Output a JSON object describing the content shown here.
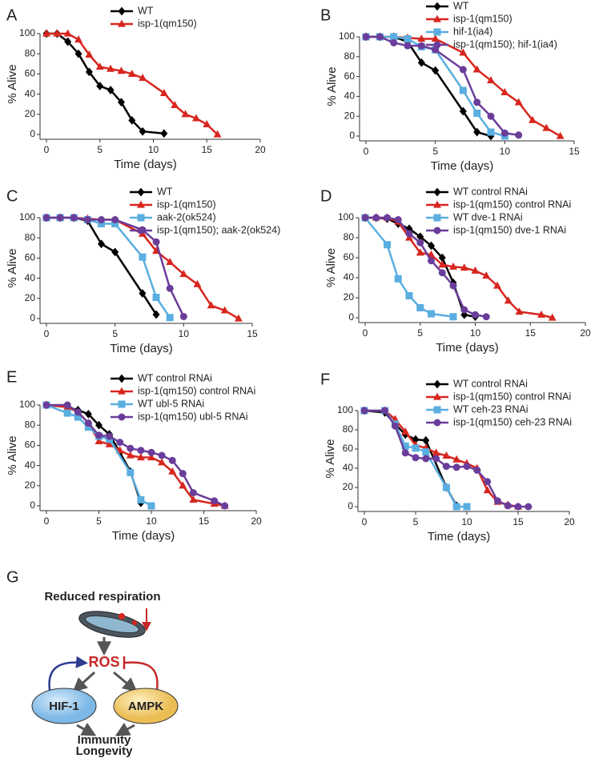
{
  "chart_data": [
    {
      "type": "line",
      "panel": "A",
      "xlabel": "Time (days)",
      "ylabel": "% Alive",
      "xlim": [
        0,
        20
      ],
      "ylim": [
        0,
        100
      ],
      "xticks": [
        0,
        5,
        10,
        15,
        20
      ],
      "yticks": [
        0,
        20,
        40,
        60,
        80,
        100
      ],
      "series": [
        {
          "name": "WT",
          "color": "#000000",
          "marker": "diamond",
          "x": [
            0,
            1,
            2,
            3,
            4,
            5,
            6,
            7,
            8,
            9,
            11
          ],
          "values": [
            100,
            100,
            92,
            80,
            62,
            48,
            44,
            32,
            14,
            3,
            1
          ]
        },
        {
          "name": "isp-1(qm150)",
          "color": "#d7261e",
          "marker": "triangle",
          "x": [
            0,
            1,
            2,
            3,
            4,
            5,
            6,
            7,
            8,
            9,
            11,
            12,
            13,
            14,
            15,
            16
          ],
          "values": [
            100,
            100,
            100,
            94,
            79,
            67,
            65,
            63,
            60,
            56,
            41,
            29,
            20,
            16,
            10,
            0
          ]
        }
      ]
    },
    {
      "type": "line",
      "panel": "B",
      "xlabel": "Time (days)",
      "ylabel": "% Alive",
      "xlim": [
        0,
        15
      ],
      "ylim": [
        0,
        100
      ],
      "xticks": [
        0,
        5,
        10,
        15
      ],
      "yticks": [
        0,
        20,
        40,
        60,
        80,
        100
      ],
      "series": [
        {
          "name": "WT",
          "color": "#000000",
          "marker": "diamond",
          "x": [
            0,
            1,
            2,
            3,
            4,
            5,
            7,
            8,
            9
          ],
          "values": [
            100,
            100,
            100,
            95,
            74,
            66,
            25,
            4,
            0
          ]
        },
        {
          "name": "isp-1(qm150)",
          "color": "#d7261e",
          "marker": "triangle",
          "x": [
            0,
            1,
            2,
            3,
            4,
            5,
            7,
            8,
            9,
            10,
            11,
            12,
            13,
            14
          ],
          "values": [
            100,
            100,
            100,
            99,
            98,
            98,
            84,
            67,
            56,
            44,
            34,
            16,
            8,
            0
          ]
        },
        {
          "name": "hif-1(ia4)",
          "color": "#5aaee0",
          "marker": "square",
          "x": [
            0,
            1,
            2,
            3,
            4,
            5,
            7,
            8,
            9,
            10
          ],
          "values": [
            100,
            100,
            100,
            98,
            90,
            87,
            46,
            23,
            4,
            0
          ]
        },
        {
          "name": "isp-1(qm150); hif-1(ia4)",
          "color": "#6a3d9a",
          "marker": "circle",
          "x": [
            0,
            1,
            2,
            3,
            4,
            5,
            7,
            8,
            9,
            10,
            11
          ],
          "values": [
            100,
            100,
            94,
            91,
            91,
            87,
            67,
            34,
            20,
            3,
            1
          ]
        }
      ]
    },
    {
      "type": "line",
      "panel": "C",
      "xlabel": "Time (days)",
      "ylabel": "% Alive",
      "xlim": [
        0,
        15
      ],
      "ylim": [
        0,
        100
      ],
      "xticks": [
        0,
        5,
        10,
        15
      ],
      "yticks": [
        0,
        20,
        40,
        60,
        80,
        100
      ],
      "series": [
        {
          "name": "WT",
          "color": "#000000",
          "marker": "diamond",
          "x": [
            0,
            1,
            2,
            3,
            4,
            5,
            7,
            8
          ],
          "values": [
            100,
            100,
            100,
            97,
            74,
            66,
            25,
            4
          ]
        },
        {
          "name": "isp-1(qm150)",
          "color": "#d7261e",
          "marker": "triangle",
          "x": [
            0,
            1,
            2,
            3,
            4,
            5,
            7,
            8,
            9,
            10,
            11,
            12,
            13,
            14
          ],
          "values": [
            100,
            100,
            100,
            99,
            98,
            98,
            84,
            67,
            56,
            44,
            34,
            13,
            8,
            0
          ]
        },
        {
          "name": "aak-2(ok524)",
          "color": "#5aaee0",
          "marker": "square",
          "x": [
            0,
            1,
            2,
            3,
            4,
            5,
            7,
            8,
            9
          ],
          "values": [
            100,
            100,
            100,
            98,
            94,
            94,
            61,
            21,
            1
          ]
        },
        {
          "name": "isp-1(qm150); aak-2(ok524)",
          "color": "#6a3d9a",
          "marker": "circle",
          "x": [
            0,
            1,
            2,
            3,
            4,
            5,
            7,
            8,
            9,
            10
          ],
          "values": [
            100,
            100,
            100,
            98,
            98,
            98,
            88,
            76,
            30,
            2
          ]
        }
      ]
    },
    {
      "type": "line",
      "panel": "D",
      "xlabel": "Time (days)",
      "ylabel": "% Alive",
      "xlim": [
        0,
        20
      ],
      "ylim": [
        0,
        100
      ],
      "xticks": [
        0,
        5,
        10,
        15,
        20
      ],
      "yticks": [
        0,
        20,
        40,
        60,
        80,
        100
      ],
      "series": [
        {
          "name": "WT control RNAi",
          "color": "#000000",
          "marker": "diamond",
          "x": [
            0,
            1,
            2,
            3,
            4,
            5,
            6,
            7,
            8,
            9,
            10
          ],
          "values": [
            100,
            100,
            99,
            94,
            89,
            81,
            72,
            60,
            35,
            3,
            1
          ]
        },
        {
          "name": "isp-1(qm150) control RNAi",
          "color": "#d7261e",
          "marker": "triangle",
          "x": [
            0,
            1,
            2,
            3,
            4,
            5,
            6,
            7,
            8,
            9,
            10,
            11,
            12,
            13,
            14,
            16,
            17
          ],
          "values": [
            100,
            100,
            100,
            96,
            80,
            65,
            63,
            53,
            51,
            50,
            47,
            42,
            32,
            17,
            6,
            3,
            0
          ]
        },
        {
          "name": "WT dve-1 RNAi",
          "color": "#5aaee0",
          "marker": "square",
          "x": [
            0,
            2,
            3,
            4,
            5,
            6,
            8
          ],
          "values": [
            100,
            73,
            39,
            22,
            10,
            4,
            1
          ]
        },
        {
          "name": "isp-1(qm150) dve-1 RNAi",
          "color": "#6a3d9a",
          "marker": "circle",
          "x": [
            0,
            1,
            2,
            3,
            4,
            5,
            6,
            7,
            8,
            9,
            10,
            11
          ],
          "values": [
            100,
            100,
            100,
            98,
            84,
            75,
            57,
            45,
            32,
            8,
            3,
            1
          ]
        }
      ]
    },
    {
      "type": "line",
      "panel": "E",
      "xlabel": "Time (days)",
      "ylabel": "% Alive",
      "xlim": [
        0,
        20
      ],
      "ylim": [
        0,
        100
      ],
      "xticks": [
        0,
        5,
        10,
        15,
        20
      ],
      "yticks": [
        0,
        20,
        40,
        60,
        80,
        100
      ],
      "series": [
        {
          "name": "WT control RNAi",
          "color": "#000000",
          "marker": "diamond",
          "x": [
            0,
            2,
            3,
            4,
            5,
            6,
            7,
            8,
            9
          ],
          "values": [
            100,
            98,
            95,
            91,
            80,
            71,
            53,
            34,
            3
          ]
        },
        {
          "name": "isp-1(qm150) control RNAi",
          "color": "#d7261e",
          "marker": "triangle",
          "x": [
            0,
            2,
            3,
            4,
            5,
            6,
            7,
            8,
            9,
            10,
            11,
            12,
            13,
            14,
            16,
            17
          ],
          "values": [
            100,
            98,
            93,
            82,
            64,
            61,
            55,
            50,
            48,
            48,
            43,
            34,
            20,
            6,
            2,
            0
          ]
        },
        {
          "name": "WT ubl-5 RNAi",
          "color": "#5aaee0",
          "marker": "square",
          "x": [
            0,
            2,
            3,
            4,
            5,
            6,
            8,
            9,
            10
          ],
          "values": [
            100,
            92,
            88,
            78,
            69,
            66,
            33,
            6,
            0
          ]
        },
        {
          "name": "isp-1(qm150) ubl-5 RNAi",
          "color": "#6a3d9a",
          "marker": "circle",
          "x": [
            0,
            2,
            3,
            4,
            5,
            6,
            7,
            8,
            9,
            10,
            11,
            12,
            13,
            14,
            16,
            17
          ],
          "values": [
            100,
            100,
            93,
            82,
            70,
            69,
            63,
            57,
            55,
            53,
            50,
            45,
            32,
            13,
            5,
            0
          ]
        }
      ]
    },
    {
      "type": "line",
      "panel": "F",
      "xlabel": "Time (days)",
      "ylabel": "% Alive",
      "xlim": [
        0,
        20
      ],
      "ylim": [
        0,
        100
      ],
      "xticks": [
        0,
        5,
        10,
        15,
        20
      ],
      "yticks": [
        0,
        20,
        40,
        60,
        80,
        100
      ],
      "series": [
        {
          "name": "WT control RNAi",
          "color": "#000000",
          "marker": "diamond",
          "x": [
            0,
            2,
            3,
            4,
            5,
            6,
            8,
            9
          ],
          "values": [
            100,
            98,
            86,
            75,
            70,
            69,
            20,
            1
          ]
        },
        {
          "name": "isp-1(qm150) control RNAi",
          "color": "#d7261e",
          "marker": "triangle",
          "x": [
            0,
            2,
            3,
            4,
            5,
            6,
            7,
            8,
            9,
            10,
            11,
            12,
            13,
            14,
            15
          ],
          "values": [
            100,
            100,
            91,
            78,
            64,
            61,
            56,
            53,
            49,
            45,
            40,
            17,
            5,
            2,
            0
          ]
        },
        {
          "name": "WT ceh-23 RNAi",
          "color": "#5aaee0",
          "marker": "square",
          "x": [
            0,
            2,
            3,
            4,
            5,
            6,
            8,
            9,
            10
          ],
          "values": [
            100,
            100,
            86,
            63,
            61,
            57,
            20,
            0,
            0
          ]
        },
        {
          "name": "isp-1(qm150) ceh-23 RNAi",
          "color": "#6a3d9a",
          "marker": "circle",
          "x": [
            0,
            2,
            3,
            4,
            5,
            6,
            7,
            8,
            9,
            10,
            11,
            12,
            13,
            14,
            15,
            16
          ],
          "values": [
            100,
            100,
            84,
            56,
            51,
            50,
            50,
            42,
            41,
            42,
            38,
            26,
            6,
            1,
            0,
            0
          ]
        }
      ]
    }
  ],
  "diagram": {
    "panel": "G",
    "top": "Reduced respiration",
    "center": "ROS",
    "left": "HIF-1",
    "right": "AMPK",
    "outcome": [
      "Immunity",
      "Longevity"
    ]
  }
}
